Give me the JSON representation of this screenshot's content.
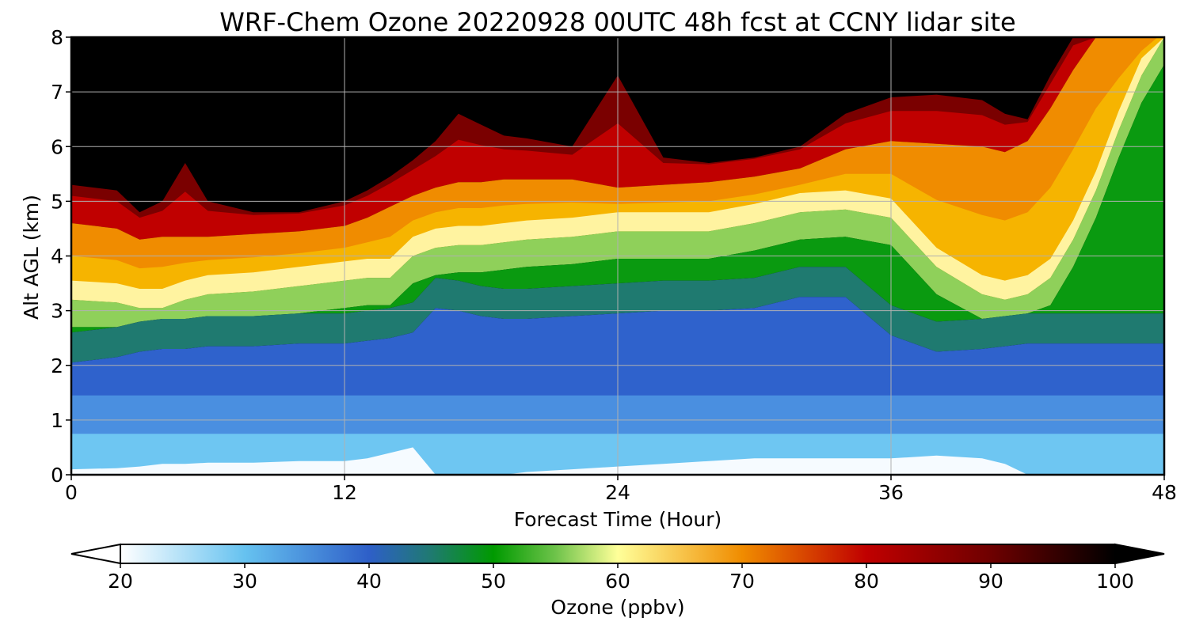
{
  "chart_data": {
    "type": "heatmap",
    "title": "WRF-Chem Ozone  20220928 00UTC 48h fcst at CCNY lidar site",
    "xlabel": "Forecast Time (Hour)",
    "ylabel": "Alt AGL (km)",
    "xlim": [
      0,
      48
    ],
    "ylim": [
      0,
      8
    ],
    "xticks": [
      "0",
      "12",
      "24",
      "36",
      "48"
    ],
    "yticks": [
      "0",
      "1",
      "2",
      "3",
      "4",
      "5",
      "6",
      "7",
      "8"
    ],
    "grid": true,
    "x_hours": [
      0,
      2,
      3,
      4,
      5,
      6,
      8,
      10,
      12,
      13,
      14,
      15,
      16,
      17,
      18,
      19,
      20,
      22,
      24,
      26,
      28,
      30,
      32,
      34,
      36,
      38,
      40,
      41,
      42,
      43,
      44,
      45,
      46,
      47,
      48
    ],
    "layers_km": [
      {
        "name": "lower-bound-of-ozone-plume-60ppbv",
        "values": [
          3.2,
          3.15,
          3.05,
          3.05,
          3.2,
          3.3,
          3.35,
          3.45,
          3.55,
          3.6,
          3.6,
          4.0,
          4.15,
          4.2,
          4.2,
          4.25,
          4.3,
          4.35,
          4.45,
          4.45,
          4.45,
          4.6,
          4.8,
          4.85,
          4.7,
          3.8,
          3.3,
          3.2,
          3.3,
          3.6,
          4.3,
          5.2,
          6.3,
          7.3,
          8.0
        ]
      },
      {
        "name": "upper-bound-of-ozone-plume-80ppbv",
        "values": [
          4.6,
          4.5,
          4.3,
          4.35,
          4.35,
          4.35,
          4.4,
          4.45,
          4.55,
          4.7,
          4.9,
          5.1,
          5.25,
          5.35,
          5.35,
          5.4,
          5.4,
          5.4,
          5.25,
          5.3,
          5.35,
          5.45,
          5.6,
          5.95,
          6.1,
          6.05,
          6.0,
          5.9,
          6.1,
          6.7,
          7.4,
          8.0,
          8.0,
          8.0,
          8.0
        ]
      },
      {
        "name": "top-of-high-ozone-90ppbv",
        "values": [
          5.3,
          5.2,
          4.8,
          5.0,
          5.7,
          5.0,
          4.8,
          4.8,
          5.0,
          5.2,
          5.45,
          5.75,
          6.1,
          6.6,
          6.4,
          6.2,
          6.15,
          6.0,
          7.3,
          5.8,
          5.7,
          5.8,
          6.0,
          6.6,
          6.9,
          6.95,
          6.85,
          6.6,
          6.5,
          7.3,
          8.0,
          8.0,
          8.0,
          8.0,
          8.0
        ]
      },
      {
        "name": "green-layer-bottom-50ppbv",
        "values": [
          2.6,
          2.7,
          2.8,
          2.85,
          2.85,
          2.9,
          2.9,
          2.95,
          2.95,
          3.0,
          3.05,
          3.15,
          3.6,
          3.55,
          3.45,
          3.4,
          3.4,
          3.45,
          3.5,
          3.55,
          3.55,
          3.6,
          3.8,
          3.8,
          3.1,
          2.8,
          2.85,
          2.9,
          2.95,
          2.95,
          2.95,
          2.95,
          2.95,
          2.95,
          2.95
        ]
      },
      {
        "name": "surface-clean-layer-top-25ppbv",
        "values": [
          0.1,
          0.12,
          0.15,
          0.2,
          0.2,
          0.22,
          0.22,
          0.25,
          0.25,
          0.3,
          0.4,
          0.5,
          0.0,
          0.0,
          0.0,
          0.0,
          0.05,
          0.1,
          0.15,
          0.2,
          0.25,
          0.3,
          0.3,
          0.3,
          0.3,
          0.35,
          0.3,
          0.2,
          0.0,
          0.0,
          0.0,
          0.0,
          0.0,
          0.0,
          0.0
        ]
      }
    ],
    "colorbar": {
      "label": "Ozone  (ppbv)",
      "min": 20,
      "max": 100,
      "extend": "both",
      "ticks": [
        "20",
        "30",
        "40",
        "50",
        "60",
        "70",
        "80",
        "90",
        "100"
      ],
      "stops": [
        {
          "v": 20,
          "c": "#ffffff"
        },
        {
          "v": 30,
          "c": "#66c2f0"
        },
        {
          "v": 40,
          "c": "#2e5fc8"
        },
        {
          "v": 45,
          "c": "#1f7a70"
        },
        {
          "v": 50,
          "c": "#009a00"
        },
        {
          "v": 55,
          "c": "#6ec34a"
        },
        {
          "v": 60,
          "c": "#ffff99"
        },
        {
          "v": 70,
          "c": "#f08c00"
        },
        {
          "v": 80,
          "c": "#c00000"
        },
        {
          "v": 90,
          "c": "#6e0000"
        },
        {
          "v": 100,
          "c": "#000000"
        }
      ]
    }
  }
}
